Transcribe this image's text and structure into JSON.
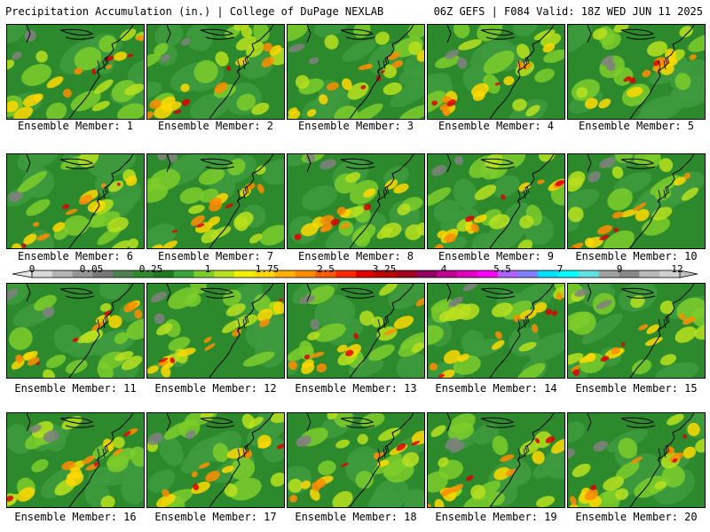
{
  "header": {
    "left": "Precipitation Accumulation (in.) | College of DuPage NEXLAB",
    "right": "06Z GEFS | F084 Valid: 18Z WED JUN 11 2025"
  },
  "members": [
    {
      "label": "Ensemble Member: 1",
      "seed": 1
    },
    {
      "label": "Ensemble Member: 2",
      "seed": 2
    },
    {
      "label": "Ensemble Member: 3",
      "seed": 3
    },
    {
      "label": "Ensemble Member: 4",
      "seed": 4
    },
    {
      "label": "Ensemble Member: 5",
      "seed": 5
    },
    {
      "label": "Ensemble Member: 6",
      "seed": 6
    },
    {
      "label": "Ensemble Member: 7",
      "seed": 7
    },
    {
      "label": "Ensemble Member: 8",
      "seed": 8
    },
    {
      "label": "Ensemble Member: 9",
      "seed": 9
    },
    {
      "label": "Ensemble Member: 10",
      "seed": 10
    },
    {
      "label": "Ensemble Member: 11",
      "seed": 11
    },
    {
      "label": "Ensemble Member: 12",
      "seed": 12
    },
    {
      "label": "Ensemble Member: 13",
      "seed": 13
    },
    {
      "label": "Ensemble Member: 14",
      "seed": 14
    },
    {
      "label": "Ensemble Member: 15",
      "seed": 15
    },
    {
      "label": "Ensemble Member: 16",
      "seed": 16
    },
    {
      "label": "Ensemble Member: 17",
      "seed": 17
    },
    {
      "label": "Ensemble Member: 18",
      "seed": 18
    },
    {
      "label": "Ensemble Member: 19",
      "seed": 19
    },
    {
      "label": "Ensemble Member: 20",
      "seed": 20
    }
  ],
  "colorbar": {
    "tick_labels": [
      "0",
      "0.05",
      "0.25",
      "1",
      "1.75",
      "2.5",
      "3.25",
      "4",
      "5.5",
      "7",
      "9",
      "12"
    ],
    "colors": [
      "#d8d8d8",
      "#b4b4b4",
      "#969696",
      "#787878",
      "#4e7f4e",
      "#2e8b2e",
      "#1f7a1f",
      "#3aa53a",
      "#7ccd2a",
      "#b8e01e",
      "#f0f000",
      "#ffd800",
      "#ffb000",
      "#ff8c00",
      "#ff5a00",
      "#ff2a00",
      "#e00000",
      "#c00000",
      "#a00020",
      "#900060",
      "#c00090",
      "#e000c0",
      "#ff00ff",
      "#b060ff",
      "#8080ff",
      "#00e0ff",
      "#00ffff",
      "#60e0e0",
      "#a0a0a0",
      "#888888",
      "#b8b8b8",
      "#d0d0d0"
    ]
  }
}
